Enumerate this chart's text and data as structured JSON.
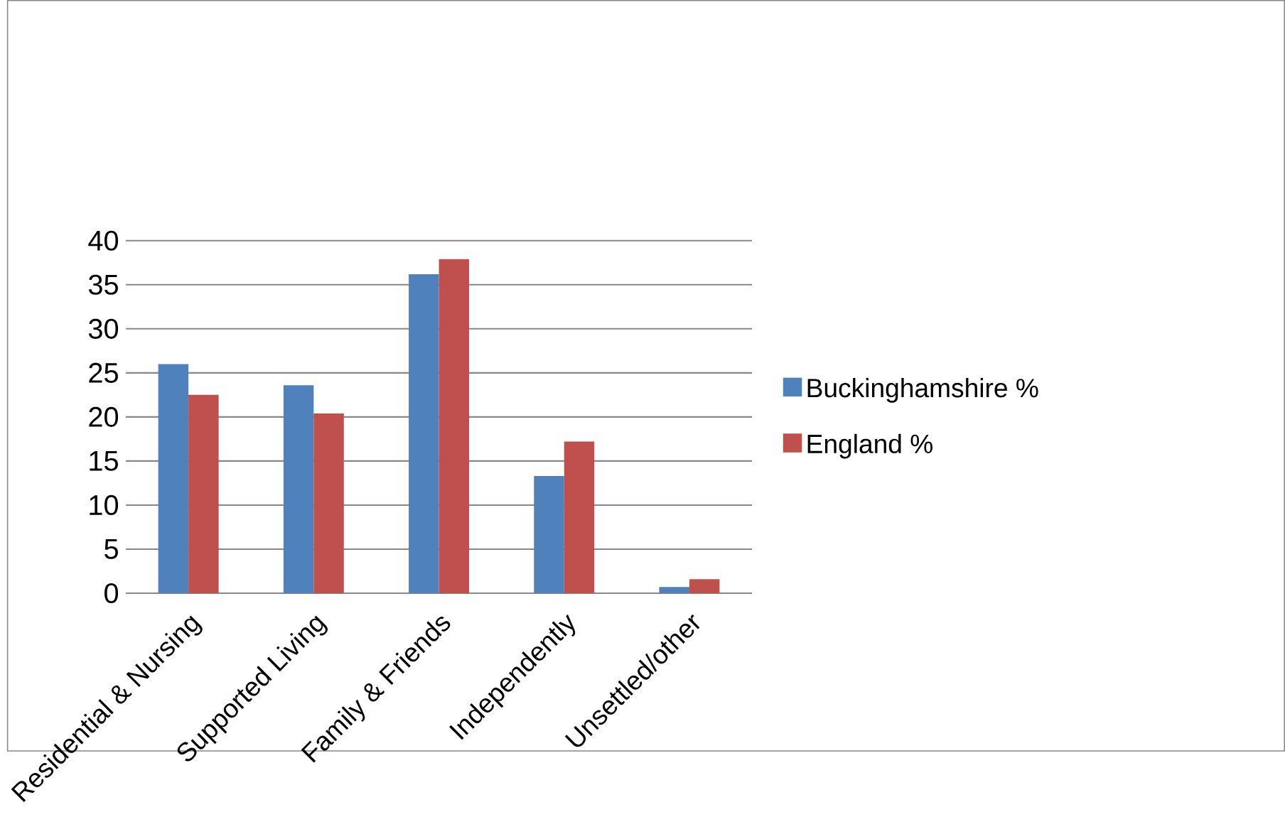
{
  "chart_data": {
    "type": "bar",
    "categories": [
      "Residential & Nursing",
      "Supported Living",
      "Family & Friends",
      "Independently",
      "Unsettled/other"
    ],
    "series": [
      {
        "name": "Buckinghamshire %",
        "color": "#4f81bd",
        "values": [
          26.0,
          23.6,
          36.2,
          13.3,
          0.7
        ]
      },
      {
        "name": "England %",
        "color": "#c0504d",
        "values": [
          22.5,
          20.4,
          37.9,
          17.2,
          1.6
        ]
      }
    ],
    "ylim": [
      0,
      40
    ],
    "yticks": [
      0,
      5,
      10,
      15,
      20,
      25,
      30,
      35,
      40
    ],
    "grid": "y",
    "legend": "right"
  }
}
